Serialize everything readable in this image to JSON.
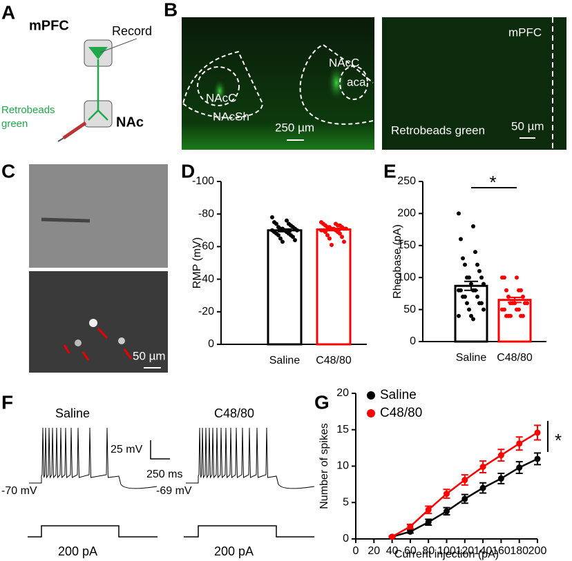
{
  "figure": {
    "panel_labels": [
      "A",
      "B",
      "C",
      "D",
      "E",
      "F",
      "G"
    ],
    "a": {
      "region_top": "mPFC",
      "record": "Record",
      "tracer": "Retrobeads green",
      "region_bottom": "NAc"
    },
    "b": {
      "left_labels": [
        "NAcC",
        "NAcSh",
        "NAcC",
        "aca"
      ],
      "left_scale": "250 µm",
      "right_region": "mPFC",
      "right_caption": "Retrobeads green",
      "right_scale": "50 µm"
    },
    "c": {
      "scale": "50 µm"
    },
    "f": {
      "groups": [
        "Saline",
        "C48/80"
      ],
      "scale_v": "25 mV",
      "scale_t": "250 ms",
      "rmp": [
        "-70 mV",
        "-69 mV"
      ],
      "step": [
        "200 pA",
        "200 pA"
      ]
    }
  },
  "chart_data": [
    {
      "type": "bar",
      "ylabel": "RMP (mV)",
      "categories": [
        "Saline",
        "C48/80"
      ],
      "values": [
        -70,
        -70.5
      ],
      "errors": [
        0.8,
        0.7
      ],
      "colors": [
        "#000000",
        "#ff0000"
      ],
      "ylim": [
        0,
        -100
      ],
      "yticks": [
        -100,
        -80,
        -60,
        -40,
        -20,
        0
      ],
      "points": [
        [
          -78,
          -76,
          -75,
          -74,
          -74,
          -73,
          -72,
          -72,
          -71,
          -71,
          -71,
          -70,
          -70,
          -70,
          -69,
          -69,
          -68,
          -68,
          -67,
          -67,
          -66,
          -65,
          -64,
          -63
        ],
        [
          -75,
          -74,
          -74,
          -73,
          -73,
          -73,
          -72,
          -72,
          -72,
          -71,
          -71,
          -71,
          -71,
          -70,
          -70,
          -70,
          -69,
          -69,
          -68,
          -67,
          -66,
          -65,
          -63,
          -61
        ]
      ]
    },
    {
      "type": "bar",
      "ylabel": "Rheobase (pA)",
      "categories": [
        "Saline",
        "C48/80"
      ],
      "values": [
        87,
        65
      ],
      "errors": [
        7,
        4
      ],
      "colors": [
        "#000000",
        "#ff0000"
      ],
      "ylim": [
        0,
        250
      ],
      "yticks": [
        0,
        50,
        100,
        150,
        200,
        250
      ],
      "annotation": "*",
      "points": [
        [
          200,
          180,
          160,
          140,
          130,
          120,
          120,
          110,
          100,
          100,
          100,
          90,
          90,
          80,
          80,
          80,
          80,
          70,
          70,
          70,
          60,
          60,
          60,
          50,
          50,
          40,
          40,
          35
        ],
        [
          100,
          100,
          100,
          80,
          80,
          80,
          70,
          70,
          60,
          60,
          60,
          60,
          60,
          50,
          50,
          50,
          50,
          40,
          40,
          40,
          40,
          40
        ]
      ]
    },
    {
      "type": "line",
      "xlabel": "Current injection (pA)",
      "ylabel": "Number of spikes",
      "annotation": "*",
      "x": [
        40,
        60,
        80,
        100,
        120,
        140,
        160,
        180,
        200
      ],
      "series": [
        {
          "name": "Saline",
          "color": "#000000",
          "values": [
            0.3,
            1.0,
            2.3,
            3.8,
            5.5,
            7.0,
            8.3,
            9.8,
            11.0
          ],
          "errors": [
            0.1,
            0.2,
            0.4,
            0.5,
            0.6,
            0.7,
            0.7,
            0.8,
            0.8
          ]
        },
        {
          "name": "C48/80",
          "color": "#ff0000",
          "values": [
            0.3,
            1.7,
            4.0,
            6.2,
            8.1,
            9.9,
            11.5,
            13.1,
            14.6
          ],
          "errors": [
            0.1,
            0.3,
            0.5,
            0.6,
            0.7,
            0.8,
            0.8,
            0.9,
            1.0
          ]
        }
      ],
      "xlim": [
        0,
        200
      ],
      "xticks": [
        0,
        20,
        40,
        60,
        80,
        100,
        120,
        140,
        160,
        180,
        200
      ],
      "ylim": [
        0,
        20
      ],
      "yticks": [
        0,
        5,
        10,
        15,
        20
      ]
    }
  ]
}
